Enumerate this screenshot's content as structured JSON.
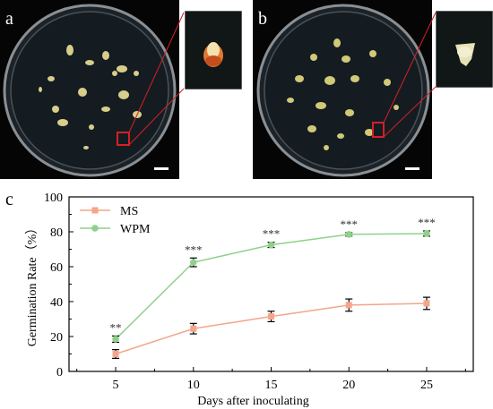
{
  "panels": {
    "a": {
      "label": "a"
    },
    "b": {
      "label": "b"
    },
    "c": {
      "label": "c"
    }
  },
  "colors": {
    "ms": "#f4a58a",
    "wpm": "#8fd18a",
    "highlight": "#d61f26",
    "axis": "#000000"
  },
  "chart_data": {
    "type": "line",
    "x": [
      5,
      10,
      15,
      20,
      25
    ],
    "xlabel": "Days after inoculating",
    "ylabel": "Germination Rate（%）",
    "xticks": [
      "5",
      "10",
      "15",
      "20",
      "25"
    ],
    "yticks": [
      "0",
      "20",
      "40",
      "60",
      "80",
      "100"
    ],
    "ylim": [
      0,
      100
    ],
    "xlim": [
      2,
      28
    ],
    "grid": false,
    "legend_position": "top-left",
    "series": [
      {
        "name": "MS",
        "values": [
          10,
          24.5,
          31.5,
          38,
          39
        ],
        "errors": [
          2.5,
          3,
          3,
          3.5,
          3.5
        ],
        "marker": "square"
      },
      {
        "name": "WPM",
        "values": [
          18.5,
          62.5,
          72.5,
          78.5,
          79
        ],
        "errors": [
          1.8,
          2.5,
          1.5,
          1,
          1.5
        ],
        "marker": "circle"
      }
    ],
    "significance": [
      "**",
      "***",
      "***",
      "***",
      "***"
    ]
  }
}
